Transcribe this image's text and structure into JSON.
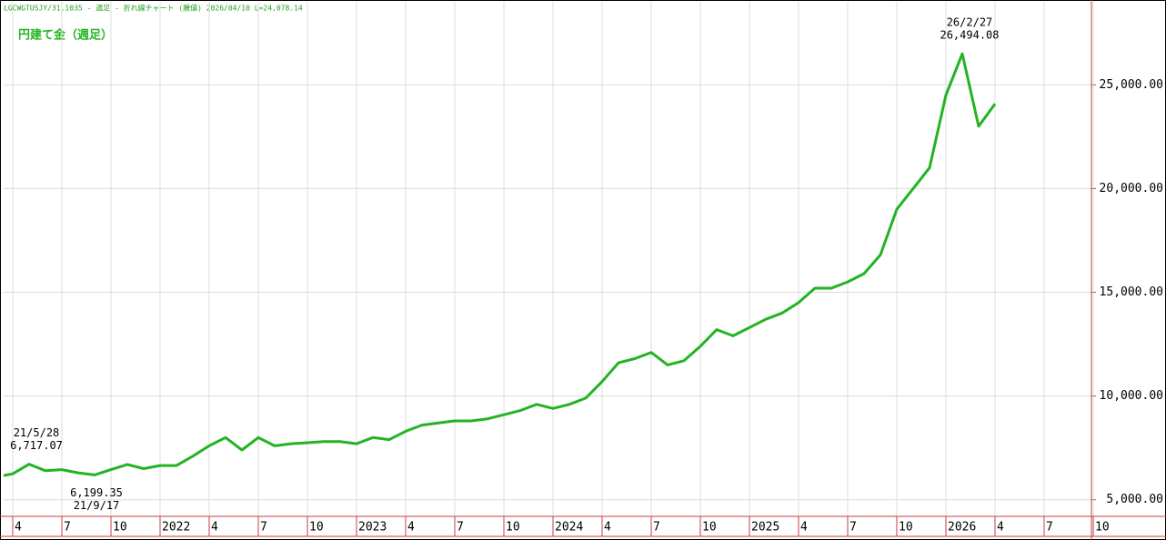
{
  "chart_data": {
    "type": "line",
    "header": "LGCWGTUSJY/31.1035 - 週足 - 折れ線チャート (騰値)  2026/04/10 L=24,078.14",
    "title": "円建て金（週足）",
    "x": [
      "2021-03",
      "2021-04",
      "2021-05",
      "2021-06",
      "2021-07",
      "2021-08",
      "2021-09",
      "2021-10",
      "2021-11",
      "2021-12",
      "2022-01",
      "2022-02",
      "2022-03",
      "2022-04",
      "2022-05",
      "2022-06",
      "2022-07",
      "2022-08",
      "2022-09",
      "2022-10",
      "2022-11",
      "2022-12",
      "2023-01",
      "2023-02",
      "2023-03",
      "2023-04",
      "2023-05",
      "2023-06",
      "2023-07",
      "2023-08",
      "2023-09",
      "2023-10",
      "2023-11",
      "2023-12",
      "2024-01",
      "2024-02",
      "2024-03",
      "2024-04",
      "2024-05",
      "2024-06",
      "2024-07",
      "2024-08",
      "2024-09",
      "2024-10",
      "2024-11",
      "2024-12",
      "2025-01",
      "2025-02",
      "2025-03",
      "2025-04",
      "2025-05",
      "2025-06",
      "2025-07",
      "2025-08",
      "2025-09",
      "2025-10",
      "2025-11",
      "2025-12",
      "2026-01",
      "2026-02",
      "2026-03",
      "2026-04"
    ],
    "series": [
      {
        "name": "円建て金",
        "color": "#22b422",
        "values": [
          6100,
          6250,
          6717.07,
          6400,
          6450,
          6300,
          6199.35,
          6450,
          6700,
          6500,
          6650,
          6650,
          7100,
          7600,
          8000,
          7400,
          8000,
          7600,
          7700,
          7750,
          7800,
          7800,
          7700,
          8000,
          7900,
          8300,
          8600,
          8700,
          8800,
          8800,
          8900,
          9100,
          9300,
          9600,
          9400,
          9600,
          9900,
          10700,
          11600,
          11800,
          12100,
          11500,
          11700,
          12400,
          13200,
          12900,
          13300,
          13700,
          14000,
          14500,
          15200,
          15200,
          15500,
          15900,
          16800,
          19000,
          20000,
          21000,
          24500,
          26494.08,
          23000,
          24078.14
        ]
      }
    ],
    "xlim": [
      "2021-03",
      "2026-10"
    ],
    "xticks": [
      {
        "value": "2021-04",
        "label": "4"
      },
      {
        "value": "2021-07",
        "label": "7"
      },
      {
        "value": "2021-10",
        "label": "10"
      },
      {
        "value": "2022-01",
        "label": "2022"
      },
      {
        "value": "2022-04",
        "label": "4"
      },
      {
        "value": "2022-07",
        "label": "7"
      },
      {
        "value": "2022-10",
        "label": "10"
      },
      {
        "value": "2023-01",
        "label": "2023"
      },
      {
        "value": "2023-04",
        "label": "4"
      },
      {
        "value": "2023-07",
        "label": "7"
      },
      {
        "value": "2023-10",
        "label": "10"
      },
      {
        "value": "2024-01",
        "label": "2024"
      },
      {
        "value": "2024-04",
        "label": "4"
      },
      {
        "value": "2024-07",
        "label": "7"
      },
      {
        "value": "2024-10",
        "label": "10"
      },
      {
        "value": "2025-01",
        "label": "2025"
      },
      {
        "value": "2025-04",
        "label": "4"
      },
      {
        "value": "2025-07",
        "label": "7"
      },
      {
        "value": "2025-10",
        "label": "10"
      },
      {
        "value": "2026-01",
        "label": "2026"
      },
      {
        "value": "2026-04",
        "label": "4"
      },
      {
        "value": "2026-07",
        "label": "7"
      },
      {
        "value": "2026-10",
        "label": "10"
      }
    ],
    "ylim": [
      4200,
      29000
    ],
    "yticks": [
      {
        "value": 5000,
        "label": "5,000.00"
      },
      {
        "value": 10000,
        "label": "10,000.00"
      },
      {
        "value": 15000,
        "label": "15,000.00"
      },
      {
        "value": 20000,
        "label": "20,000.00"
      },
      {
        "value": 25000,
        "label": "25,000.00"
      }
    ],
    "grid": true,
    "annotations": [
      {
        "date": "21/5/28",
        "value_label": "6,717.07",
        "x": "2021-05",
        "y": 6717.07,
        "position": "above"
      },
      {
        "date": "21/9/17",
        "value_label": "6,199.35",
        "x": "2021-09",
        "y": 6199.35,
        "position": "below"
      },
      {
        "date": "26/2/27",
        "value_label": "26,494.08",
        "x": "2026-02",
        "y": 26494.08,
        "position": "above"
      }
    ]
  }
}
